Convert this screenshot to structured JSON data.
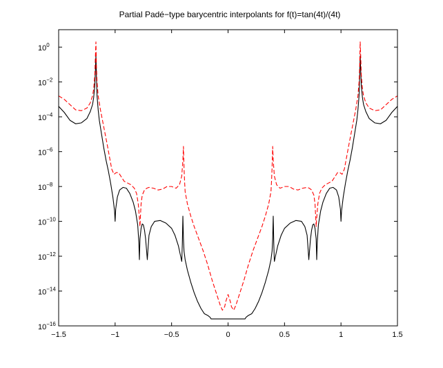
{
  "chart_data": {
    "type": "line",
    "title": "Partial Padé−type barycentric interpolants for f(t)=tan(4t)/(4t)",
    "xlabel": "",
    "ylabel": "",
    "xlim": [
      -1.5,
      1.5
    ],
    "ylim_log10": [
      -16,
      1
    ],
    "yscale": "log",
    "grid": false,
    "legend": "none",
    "x_ticks": [
      -1.5,
      -1,
      -0.5,
      0,
      0.5,
      1,
      1.5
    ],
    "x_tick_labels": [
      "−1.5",
      "−1",
      "−0.5",
      "0",
      "0.5",
      "1",
      "1.5"
    ],
    "y_ticks_exp": [
      0,
      -2,
      -4,
      -6,
      -8,
      -10,
      -12,
      -14,
      -16
    ],
    "y_tick_base": "10",
    "y_tick_exponents": [
      "0",
      "−2",
      "−4",
      "−6",
      "−8",
      "−10",
      "−12",
      "−14",
      "−16"
    ],
    "series": [
      {
        "color": "#000000",
        "dash": "solid",
        "x": [
          -1.5,
          -1.45,
          -1.4,
          -1.35,
          -1.3,
          -1.25,
          -1.22,
          -1.2,
          -1.19,
          -1.18,
          -1.175,
          -1.17,
          -1.165,
          -1.16,
          -1.15,
          -1.14,
          -1.12,
          -1.1,
          -1.08,
          -1.06,
          -1.04,
          -1.02,
          -1.005,
          -1.0,
          -0.995,
          -0.98,
          -0.96,
          -0.93,
          -0.9,
          -0.87,
          -0.84,
          -0.82,
          -0.8,
          -0.79,
          -0.785,
          -0.78,
          -0.77,
          -0.76,
          -0.75,
          -0.74,
          -0.73,
          -0.72,
          -0.715,
          -0.71,
          -0.7,
          -0.68,
          -0.65,
          -0.6,
          -0.55,
          -0.5,
          -0.47,
          -0.44,
          -0.42,
          -0.41,
          -0.405,
          -0.4,
          -0.395,
          -0.39,
          -0.38,
          -0.36,
          -0.33,
          -0.3,
          -0.27,
          -0.24,
          -0.21,
          -0.18,
          -0.16,
          -0.15,
          -0.14,
          0.14,
          0.15,
          0.16,
          0.18,
          0.21,
          0.24,
          0.27,
          0.3,
          0.33,
          0.36,
          0.38,
          0.39,
          0.395,
          0.4,
          0.405,
          0.41,
          0.42,
          0.44,
          0.47,
          0.5,
          0.55,
          0.6,
          0.65,
          0.68,
          0.7,
          0.71,
          0.715,
          0.72,
          0.73,
          0.74,
          0.75,
          0.76,
          0.77,
          0.78,
          0.785,
          0.79,
          0.8,
          0.82,
          0.84,
          0.87,
          0.9,
          0.93,
          0.96,
          0.98,
          0.995,
          1.0,
          1.005,
          1.02,
          1.04,
          1.06,
          1.08,
          1.1,
          1.12,
          1.14,
          1.15,
          1.16,
          1.165,
          1.17,
          1.175,
          1.18,
          1.19,
          1.2,
          1.22,
          1.25,
          1.3,
          1.35,
          1.4,
          1.45,
          1.5
        ],
        "log10y": [
          -3.4,
          -3.75,
          -4.2,
          -4.4,
          -4.35,
          -4.1,
          -3.7,
          -3.3,
          -2.9,
          -2.2,
          -1.4,
          -0.5,
          -1.8,
          -2.8,
          -3.6,
          -4.2,
          -5.0,
          -5.8,
          -6.5,
          -7.1,
          -7.8,
          -8.6,
          -9.4,
          -10.0,
          -9.3,
          -8.6,
          -8.2,
          -8.05,
          -8.1,
          -8.4,
          -8.9,
          -9.4,
          -10.2,
          -11.2,
          -12.2,
          -11.0,
          -10.4,
          -10.15,
          -10.2,
          -10.5,
          -11.0,
          -11.8,
          -12.2,
          -11.7,
          -10.8,
          -10.3,
          -10.0,
          -9.95,
          -10.1,
          -10.4,
          -10.8,
          -11.4,
          -12.0,
          -12.3,
          -11.3,
          -9.7,
          -11.0,
          -11.7,
          -12.2,
          -12.8,
          -13.5,
          -14.1,
          -14.6,
          -15.0,
          -15.3,
          -15.4,
          -15.5,
          -15.6,
          -15.6,
          -15.6,
          -15.6,
          -15.5,
          -15.4,
          -15.3,
          -15.0,
          -14.6,
          -14.1,
          -13.5,
          -12.8,
          -12.2,
          -11.7,
          -11.0,
          -9.7,
          -11.3,
          -12.3,
          -12.0,
          -11.4,
          -10.8,
          -10.4,
          -10.1,
          -9.95,
          -10.0,
          -10.3,
          -10.8,
          -11.7,
          -12.2,
          -11.8,
          -11.0,
          -10.5,
          -10.2,
          -10.15,
          -10.4,
          -11.0,
          -12.2,
          -11.2,
          -10.2,
          -9.4,
          -8.9,
          -8.4,
          -8.1,
          -8.05,
          -8.2,
          -8.6,
          -9.3,
          -10.0,
          -9.4,
          -8.6,
          -7.8,
          -7.1,
          -6.5,
          -5.8,
          -5.0,
          -4.2,
          -3.6,
          -2.8,
          -1.8,
          -0.5,
          -1.4,
          -2.2,
          -2.9,
          -3.3,
          -3.7,
          -4.1,
          -4.35,
          -4.4,
          -4.2,
          -3.75,
          -3.4
        ]
      },
      {
        "color": "#ff0000",
        "dash": "dashed",
        "x": [
          -1.5,
          -1.45,
          -1.4,
          -1.35,
          -1.3,
          -1.25,
          -1.22,
          -1.2,
          -1.19,
          -1.18,
          -1.175,
          -1.17,
          -1.165,
          -1.16,
          -1.15,
          -1.13,
          -1.1,
          -1.07,
          -1.05,
          -1.03,
          -1.01,
          -0.99,
          -0.97,
          -0.95,
          -0.92,
          -0.89,
          -0.86,
          -0.83,
          -0.81,
          -0.795,
          -0.785,
          -0.78,
          -0.775,
          -0.77,
          -0.76,
          -0.74,
          -0.72,
          -0.7,
          -0.66,
          -0.62,
          -0.58,
          -0.54,
          -0.5,
          -0.46,
          -0.43,
          -0.41,
          -0.4,
          -0.395,
          -0.39,
          -0.385,
          -0.38,
          -0.36,
          -0.33,
          -0.3,
          -0.26,
          -0.22,
          -0.18,
          -0.14,
          -0.1,
          -0.07,
          -0.05,
          -0.03,
          -0.02,
          -0.01,
          0.0,
          0.01,
          0.02,
          0.03,
          0.05,
          0.07,
          0.1,
          0.14,
          0.18,
          0.22,
          0.26,
          0.3,
          0.33,
          0.36,
          0.38,
          0.385,
          0.39,
          0.395,
          0.4,
          0.41,
          0.43,
          0.46,
          0.5,
          0.54,
          0.58,
          0.62,
          0.66,
          0.7,
          0.72,
          0.74,
          0.76,
          0.77,
          0.775,
          0.78,
          0.785,
          0.795,
          0.81,
          0.83,
          0.86,
          0.89,
          0.92,
          0.95,
          0.97,
          0.99,
          1.01,
          1.03,
          1.05,
          1.07,
          1.1,
          1.13,
          1.15,
          1.16,
          1.165,
          1.17,
          1.175,
          1.18,
          1.19,
          1.2,
          1.22,
          1.25,
          1.3,
          1.35,
          1.4,
          1.45,
          1.5
        ],
        "log10y": [
          -2.8,
          -3.0,
          -3.3,
          -3.6,
          -3.65,
          -3.5,
          -3.2,
          -2.8,
          -2.4,
          -1.6,
          -0.6,
          0.3,
          -1.2,
          -2.0,
          -2.8,
          -3.6,
          -4.6,
          -5.6,
          -6.3,
          -7.0,
          -7.3,
          -7.2,
          -7.2,
          -7.4,
          -7.7,
          -7.8,
          -7.9,
          -8.1,
          -8.4,
          -9.0,
          -9.8,
          -10.3,
          -9.6,
          -9.0,
          -8.5,
          -8.2,
          -8.1,
          -8.05,
          -8.1,
          -8.2,
          -8.15,
          -8.0,
          -8.0,
          -8.1,
          -7.9,
          -7.4,
          -6.5,
          -5.7,
          -6.9,
          -7.7,
          -8.3,
          -9.0,
          -9.7,
          -10.3,
          -11.0,
          -11.7,
          -12.5,
          -13.4,
          -14.2,
          -14.8,
          -15.1,
          -14.9,
          -14.6,
          -14.4,
          -14.2,
          -14.4,
          -14.6,
          -14.9,
          -15.1,
          -14.8,
          -14.2,
          -13.4,
          -12.5,
          -11.7,
          -11.0,
          -10.3,
          -9.7,
          -9.0,
          -8.3,
          -7.7,
          -6.9,
          -5.7,
          -6.5,
          -7.4,
          -7.9,
          -8.1,
          -8.0,
          -8.0,
          -8.15,
          -8.2,
          -8.1,
          -8.05,
          -8.1,
          -8.2,
          -8.5,
          -9.0,
          -9.6,
          -10.3,
          -9.8,
          -9.0,
          -8.4,
          -8.1,
          -7.9,
          -7.8,
          -7.7,
          -7.4,
          -7.2,
          -7.2,
          -7.3,
          -7.0,
          -6.3,
          -5.6,
          -4.6,
          -3.6,
          -2.8,
          -2.0,
          -1.2,
          0.3,
          -0.6,
          -1.6,
          -2.4,
          -2.8,
          -3.2,
          -3.5,
          -3.65,
          -3.6,
          -3.3,
          -3.0,
          -2.8
        ]
      }
    ]
  }
}
